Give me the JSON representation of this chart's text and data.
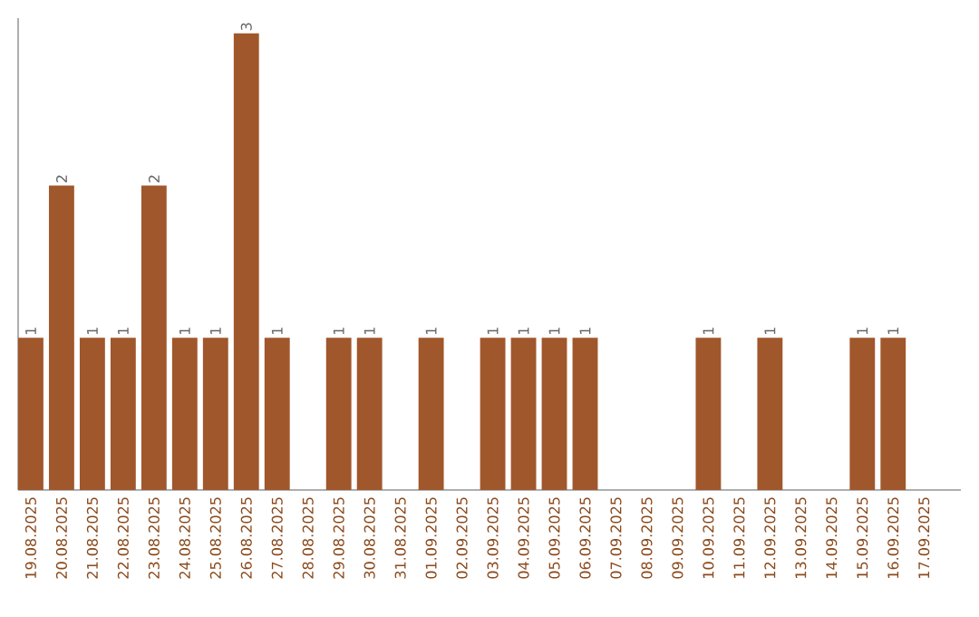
{
  "chart_data": {
    "type": "bar",
    "categories": [
      "19.08.2025",
      "20.08.2025",
      "21.08.2025",
      "22.08.2025",
      "23.08.2025",
      "24.08.2025",
      "25.08.2025",
      "26.08.2025",
      "27.08.2025",
      "28.08.2025",
      "29.08.2025",
      "30.08.2025",
      "31.08.2025",
      "01.09.2025",
      "02.09.2025",
      "03.09.2025",
      "04.09.2025",
      "05.09.2025",
      "06.09.2025",
      "07.09.2025",
      "08.09.2025",
      "09.09.2025",
      "10.09.2025",
      "11.09.2025",
      "12.09.2025",
      "13.09.2025",
      "14.09.2025",
      "15.09.2025",
      "16.09.2025",
      "17.09.2025"
    ],
    "values": [
      1,
      2,
      1,
      1,
      2,
      1,
      1,
      3,
      1,
      0,
      1,
      1,
      0,
      1,
      0,
      1,
      1,
      1,
      1,
      0,
      0,
      0,
      1,
      0,
      1,
      0,
      0,
      1,
      1,
      0
    ],
    "value_labels": [
      "1",
      "2",
      "1",
      "1",
      "2",
      "1",
      "1",
      "3",
      "1",
      null,
      "1",
      "1",
      null,
      "1",
      null,
      "1",
      "1",
      "1",
      "1",
      null,
      null,
      null,
      "1",
      null,
      "1",
      null,
      null,
      "1",
      "1",
      null
    ],
    "color": "#a0572b",
    "ylim": [
      0,
      3.1
    ]
  }
}
